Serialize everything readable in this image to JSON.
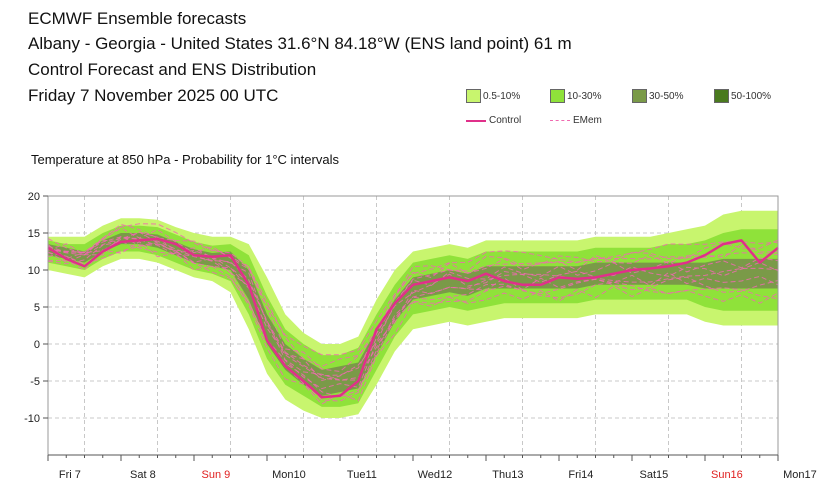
{
  "header": {
    "line1": "ECMWF Ensemble forecasts",
    "line2": "Albany - Georgia - United States 31.6°N 84.18°W (ENS land point) 61 m",
    "line3": "Control Forecast and ENS Distribution",
    "line4": "Friday  7 November 2025 00 UTC"
  },
  "legend": {
    "items": [
      {
        "label": "0.5-10%",
        "color": "#c8f56e"
      },
      {
        "label": "10-30%",
        "color": "#8fe23a"
      },
      {
        "label": "30-50%",
        "color": "#7a9a48"
      },
      {
        "label": "50-100%",
        "color": "#4a7a1e"
      }
    ],
    "control_label": "Control",
    "emem_label": "EMem",
    "control_color": "#e0308a",
    "emem_color": "#f06ab0"
  },
  "chart_data": {
    "type": "line",
    "title": "Temperature at 850 hPa - Probability for 1°C intervals",
    "xlabel": "",
    "ylabel": "",
    "ylim": [
      -15,
      20
    ],
    "xlim": [
      0,
      10
    ],
    "yticks": [
      20,
      15,
      10,
      5,
      0,
      -5,
      -10
    ],
    "xticks": [
      {
        "label": "Fri 7",
        "weekend": false
      },
      {
        "label": "Sat 8",
        "weekend": false
      },
      {
        "label": "Sun 9",
        "weekend": true
      },
      {
        "label": "Mon10",
        "weekend": false
      },
      {
        "label": "Tue11",
        "weekend": false
      },
      {
        "label": "Wed12",
        "weekend": false
      },
      {
        "label": "Thu13",
        "weekend": false
      },
      {
        "label": "Fri14",
        "weekend": false
      },
      {
        "label": "Sat15",
        "weekend": false
      },
      {
        "label": "Sun16",
        "weekend": true
      },
      {
        "label": "Mon17",
        "weekend": false
      }
    ],
    "series": [
      {
        "name": "Control",
        "x": [
          0,
          0.25,
          0.5,
          0.75,
          1,
          1.25,
          1.5,
          1.75,
          2,
          2.25,
          2.5,
          2.75,
          3,
          3.25,
          3.5,
          3.75,
          4,
          4.25,
          4.5,
          4.75,
          5,
          5.25,
          5.5,
          5.75,
          6,
          6.25,
          6.5,
          6.75,
          7,
          7.25,
          7.5,
          7.75,
          8,
          8.25,
          8.5,
          8.75,
          9,
          9.25,
          9.5,
          9.75,
          10
        ],
        "values": [
          13,
          11.5,
          10.5,
          12.5,
          13.8,
          14,
          14.2,
          13.5,
          12,
          11.8,
          12,
          8,
          0.5,
          -3,
          -5,
          -7.2,
          -7,
          -5,
          2,
          5.5,
          8,
          8.5,
          9,
          8.5,
          9.5,
          8.5,
          8,
          8,
          9,
          8.8,
          9,
          9.5,
          10,
          10.2,
          10.5,
          11,
          12,
          13.5,
          14,
          11,
          13
        ]
      }
    ],
    "ensemble": {
      "name": "EMem",
      "x": [
        0,
        0.25,
        0.5,
        0.75,
        1,
        1.25,
        1.5,
        1.75,
        2,
        2.25,
        2.5,
        2.75,
        3,
        3.25,
        3.5,
        3.75,
        4,
        4.25,
        4.5,
        4.75,
        5,
        5.25,
        5.5,
        5.75,
        6,
        6.25,
        6.5,
        6.75,
        7,
        7.25,
        7.5,
        7.75,
        8,
        8.25,
        8.5,
        8.75,
        9,
        9.25,
        9.5,
        9.75,
        10
      ],
      "p00": [
        10,
        9.5,
        9,
        10.5,
        11.5,
        11.5,
        11,
        10,
        9,
        8.5,
        7,
        2,
        -4,
        -7.5,
        -9,
        -10,
        -10,
        -9.5,
        -5.5,
        -1,
        2,
        2.5,
        3,
        2.5,
        3,
        3.5,
        3.5,
        3.5,
        3.5,
        3.5,
        4,
        4,
        4,
        4,
        4,
        4,
        3,
        2.5,
        2.5,
        2.5,
        2.5
      ],
      "p10": [
        11,
        10.5,
        10,
        11.5,
        12.5,
        12.5,
        12,
        11,
        10,
        9.5,
        8.5,
        4,
        -2,
        -5.5,
        -7,
        -8.5,
        -8.5,
        -8,
        -3.5,
        1,
        4,
        4.5,
        5,
        4.5,
        5,
        5.5,
        5.5,
        5.5,
        5.5,
        5.5,
        6,
        6,
        6,
        6,
        6,
        6,
        5,
        4.5,
        4.5,
        4.5,
        4.5
      ],
      "p30": [
        12,
        11.5,
        11,
        12.5,
        13.5,
        13.5,
        13,
        12,
        11,
        10.5,
        10,
        6,
        0,
        -3.5,
        -5.5,
        -7,
        -6.5,
        -6,
        -1.5,
        3,
        6,
        6.5,
        7,
        6.5,
        7.5,
        7.5,
        7.5,
        7.5,
        7.5,
        7.5,
        8,
        8,
        8,
        8,
        8,
        8,
        7.5,
        7.5,
        7.5,
        7.5,
        7.5
      ],
      "p50": [
        12.5,
        12,
        11.5,
        13,
        14,
        14,
        13.8,
        12.8,
        11.8,
        11.3,
        11,
        7.5,
        1.5,
        -2,
        -4,
        -5.5,
        -5,
        -4.5,
        0,
        4,
        7,
        7.5,
        8,
        7.5,
        8.5,
        8.5,
        8.5,
        8.5,
        8.5,
        8.5,
        9,
        9,
        9,
        9,
        9,
        9,
        8.5,
        8.5,
        8.5,
        8.5,
        8.5
      ],
      "p70": [
        13.5,
        13,
        12.5,
        14,
        15,
        15,
        14.8,
        13.8,
        12.8,
        12.3,
        12.5,
        10,
        4,
        0,
        -2,
        -3.5,
        -3,
        -2.5,
        2,
        6,
        9,
        9.5,
        10,
        9.5,
        10.5,
        10.5,
        10.5,
        10.5,
        10.5,
        10.5,
        11,
        11,
        11,
        11,
        11,
        11,
        11,
        11.5,
        11.5,
        11.5,
        11.5
      ],
      "p90": [
        14,
        13.5,
        13.5,
        15,
        16,
        16,
        15.8,
        14.8,
        13.8,
        13.3,
        13.5,
        12,
        6.5,
        2,
        0,
        -1.5,
        -1.5,
        -0.5,
        4,
        8,
        11,
        11.5,
        12,
        11.5,
        12.5,
        12.5,
        12.5,
        12.5,
        12.5,
        12.5,
        13,
        13,
        13,
        13,
        13.5,
        13.5,
        14,
        15,
        15.5,
        15.5,
        15.5
      ],
      "p100": [
        14.5,
        14.5,
        14.5,
        16,
        17,
        17,
        16.8,
        15.8,
        15,
        14.5,
        14.5,
        13.5,
        9,
        4,
        1.5,
        0,
        0,
        1,
        6,
        10,
        12.5,
        13,
        13.5,
        13,
        14,
        14,
        14,
        14,
        14,
        14,
        14.5,
        14.5,
        14.5,
        14.5,
        15,
        15.5,
        16,
        17.5,
        18,
        18,
        18
      ]
    }
  }
}
